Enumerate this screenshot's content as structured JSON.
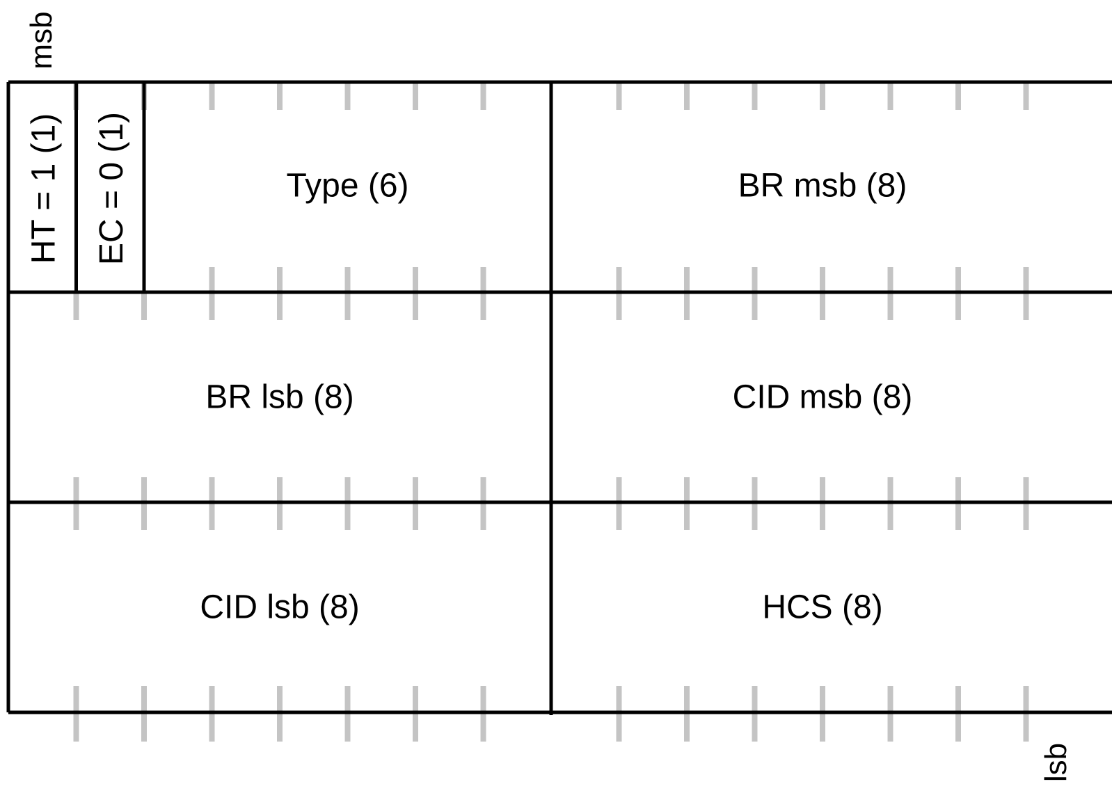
{
  "diagram": {
    "msb_label": "msb",
    "lsb_label": "lsb",
    "rows": [
      {
        "fields": [
          {
            "label": "HT = 1 (1)",
            "bits": 1,
            "vertical": true
          },
          {
            "label": "EC = 0 (1)",
            "bits": 1,
            "vertical": true
          },
          {
            "label": "Type (6)",
            "bits": 6,
            "vertical": false
          },
          {
            "label": "BR msb (8)",
            "bits": 8,
            "vertical": false
          }
        ]
      },
      {
        "fields": [
          {
            "label": "BR lsb (8)",
            "bits": 8,
            "vertical": false
          },
          {
            "label": "CID msb (8)",
            "bits": 8,
            "vertical": false
          }
        ]
      },
      {
        "fields": [
          {
            "label": "CID lsb (8)",
            "bits": 8,
            "vertical": false
          },
          {
            "label": "HCS (8)",
            "bits": 8,
            "vertical": false
          }
        ]
      }
    ]
  }
}
